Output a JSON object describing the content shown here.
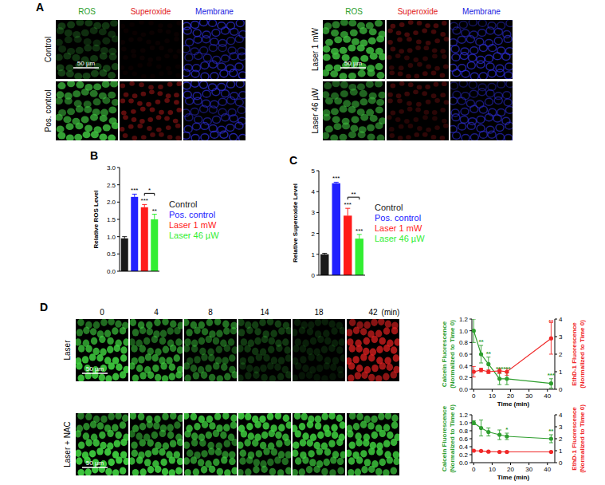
{
  "figure": {
    "panel_labels": [
      "A",
      "B",
      "C",
      "D"
    ],
    "panel_a": {
      "groups": [
        {
          "columns": [
            "ROS",
            "Superoxide",
            "Membrane"
          ],
          "rows": [
            "Control",
            "Pos. control"
          ]
        },
        {
          "columns": [
            "ROS",
            "Superoxide",
            "Membrane"
          ],
          "rows": [
            "Laser 1 mW",
            "Laser 46 µW"
          ]
        }
      ],
      "scale_bar": "50 µm"
    },
    "panel_d": {
      "times": [
        "0",
        "4",
        "8",
        "14",
        "18",
        "42"
      ],
      "time_unit": "(min)",
      "rows": [
        "Laser",
        "Laser + NAC"
      ],
      "scale_bar": "50 µm"
    }
  },
  "chart_data": [
    {
      "type": "bar",
      "y_label": "Relative ROS Level",
      "categories": [
        "Control",
        "Pos. control",
        "Laser 1 mW",
        "Laser 46 µW"
      ],
      "colors": [
        "#1a1a1a",
        "#2020ff",
        "#ff1a1a",
        "#33ee33"
      ],
      "values": [
        0.95,
        2.15,
        1.85,
        1.5
      ],
      "errors": [
        0.05,
        0.08,
        0.08,
        0.15
      ],
      "significance": [
        null,
        "***",
        "***",
        "**"
      ],
      "bracket": {
        "between": [
          2,
          3
        ],
        "label": "*"
      },
      "ylim": [
        0,
        3
      ],
      "yticks": [
        {
          "value": 0,
          "label": "0.0"
        },
        0.5,
        {
          "value": 1,
          "label": "1.0"
        },
        1.5,
        {
          "value": 2,
          "label": "2.0"
        },
        2.5,
        {
          "value": 3,
          "label": "3.0"
        }
      ],
      "tick_labels": "y",
      "legend": "right"
    },
    {
      "type": "bar",
      "y_label": "Relative Superoxide Level",
      "categories": [
        "Control",
        "Pos. control",
        "Laser 1 mW",
        "Laser 46 µW"
      ],
      "colors": [
        "#1a1a1a",
        "#2020ff",
        "#ff1a1a",
        "#33ee33"
      ],
      "values": [
        1.0,
        4.4,
        2.85,
        1.75
      ],
      "errors": [
        0.05,
        0.05,
        0.35,
        0.2
      ],
      "significance": [
        null,
        "***",
        "***",
        "***"
      ],
      "bracket": {
        "between": [
          2,
          3
        ],
        "label": "**"
      },
      "ylim": [
        0,
        5
      ],
      "yticks": [
        0,
        1,
        2,
        3,
        4,
        5
      ],
      "tick_labels": "y",
      "legend": "right"
    },
    {
      "type": "line",
      "x_label": "Time (min)",
      "y_label": [
        "Calcein Fluorescence",
        "(Normalized to Time 0)"
      ],
      "y2_label": [
        "EthD-1 Fluorescence",
        "(Normalized to Time 0)"
      ],
      "x": [
        0,
        4,
        8,
        14,
        18,
        42
      ],
      "xlim": [
        -1,
        44
      ],
      "xticks": [
        0,
        10,
        20,
        30,
        40
      ],
      "ylim": [
        0,
        1.2
      ],
      "yticks": [
        {
          "value": 0,
          "label": "0.0"
        },
        0.2,
        0.4,
        0.6,
        0.8,
        {
          "value": 1,
          "label": "1.0"
        },
        1.2
      ],
      "y2lim": [
        0,
        4
      ],
      "y2ticks": [
        0,
        1,
        2,
        3,
        4
      ],
      "series": [
        {
          "color": "#2e9e2e",
          "marker": "circle",
          "values": [
            1.0,
            0.6,
            0.43,
            0.18,
            0.18,
            0.1
          ],
          "errors": [
            0.2,
            0.15,
            0.12,
            0.1,
            0.1,
            0.08
          ],
          "significance": [
            null,
            "**",
            "**",
            "***",
            "***",
            "***"
          ]
        },
        {
          "color": "#f02828",
          "marker": "circle",
          "axis": "y2",
          "values": [
            1.0,
            1.1,
            1.0,
            1.05,
            1.0,
            2.9
          ],
          "errors": [
            0.3,
            0.1,
            0.1,
            0.15,
            0.2,
            0.9
          ],
          "significance": [
            null,
            null,
            null,
            null,
            null,
            "**"
          ]
        }
      ]
    },
    {
      "type": "line",
      "x_label": "Time (min)",
      "y_label": [
        "Calcein Fluorescence",
        "(Normalized to Time 0)"
      ],
      "y2_label": [
        "EthD-1 Fluorescence",
        "(Normalized to Time 0)"
      ],
      "x": [
        0,
        4,
        8,
        14,
        18,
        42
      ],
      "xlim": [
        -1,
        44
      ],
      "xticks": [
        0,
        10,
        20,
        30,
        40
      ],
      "ylim": [
        0,
        1.2
      ],
      "yticks": [
        {
          "value": 0,
          "label": "0.0"
        },
        0.2,
        0.4,
        0.6,
        0.8,
        {
          "value": 1,
          "label": "1.0"
        },
        1.2
      ],
      "y2lim": [
        0,
        4
      ],
      "y2ticks": [
        0,
        1,
        2,
        3,
        4
      ],
      "series": [
        {
          "color": "#2e9e2e",
          "marker": "circle",
          "values": [
            1.0,
            0.87,
            0.77,
            0.7,
            0.66,
            0.6
          ],
          "errors": [
            0.05,
            0.2,
            0.1,
            0.12,
            0.08,
            0.1
          ],
          "significance": [
            null,
            null,
            null,
            null,
            "*",
            "**"
          ]
        },
        {
          "color": "#f02828",
          "marker": "circle",
          "axis": "y2",
          "values": [
            1.0,
            0.98,
            0.92,
            0.9,
            0.9,
            0.9
          ],
          "errors": [
            0.05,
            0.05,
            0.05,
            0.05,
            0.05,
            0.05
          ],
          "significance": [
            null,
            null,
            null,
            null,
            null,
            null
          ]
        }
      ]
    }
  ]
}
